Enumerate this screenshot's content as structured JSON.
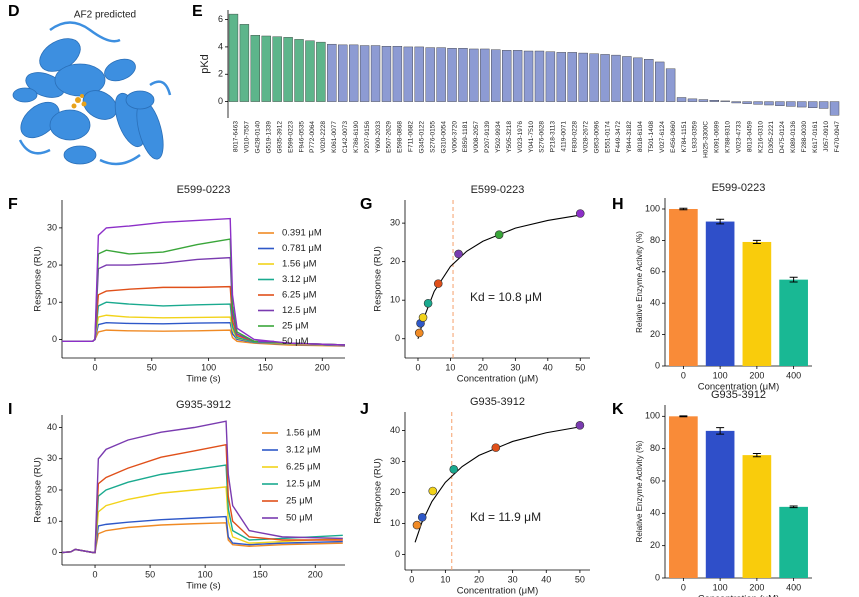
{
  "panel_d": {
    "letter": "D",
    "caption": "AF2 predicted"
  },
  "chart_data": [
    {
      "type": "bar",
      "panel": "E",
      "y_label": "pKd",
      "categories": [
        "8017-6463",
        "V010-7557",
        "G428-0140",
        "G519-1339",
        "G935-3912",
        "E599-0223",
        "F946-0535",
        "P772-0064",
        "V020-2228",
        "K061-0077",
        "C142-0073",
        "K786-6190",
        "P207-9156",
        "Y600-2033",
        "E507-2629",
        "E598-0868",
        "F711-0682",
        "G345-0122",
        "S276-0155",
        "G310-0054",
        "V006-3720",
        "E859-1181",
        "V008-2057",
        "P207-9139",
        "Y502-9934",
        "Y505-3218",
        "V023-1976",
        "Y041-7510",
        "S276-0628",
        "P218-3113",
        "4119-0071",
        "F830-0228",
        "V028-2672",
        "G953-0096",
        "E551-0174",
        "F449-3472",
        "Y844-3182",
        "8018-6104",
        "T501-1408",
        "V027-6124",
        "E456-0660",
        "K784-1151",
        "L933-0359",
        "H025-3300C",
        "K091-0699",
        "K788-9310",
        "V023-4733",
        "8013-0459",
        "K216-0310",
        "D305-2221",
        "D475-0124",
        "K089-0136",
        "F288-0030",
        "K617-0161",
        "J057-0910",
        "F470-0947"
      ],
      "values": [
        6.4,
        5.65,
        4.85,
        4.8,
        4.75,
        4.7,
        4.55,
        4.45,
        4.35,
        4.2,
        4.15,
        4.15,
        4.1,
        4.1,
        4.05,
        4.05,
        4.0,
        4.0,
        3.95,
        3.95,
        3.9,
        3.9,
        3.85,
        3.85,
        3.8,
        3.75,
        3.75,
        3.7,
        3.7,
        3.65,
        3.6,
        3.6,
        3.55,
        3.5,
        3.45,
        3.4,
        3.3,
        3.2,
        3.1,
        2.9,
        2.4,
        0.3,
        0.2,
        0.15,
        0.1,
        0.05,
        -0.1,
        -0.15,
        -0.2,
        -0.25,
        -0.3,
        -0.35,
        -0.4,
        -0.45,
        -0.5,
        -1.0
      ],
      "colors": [
        "#5db58b",
        "#5db58b",
        "#5db58b",
        "#5db58b",
        "#5db58b",
        "#5db58b",
        "#5db58b",
        "#5db58b",
        "#5db58b",
        "#8d9bd3",
        "#8d9bd3",
        "#8d9bd3",
        "#8d9bd3",
        "#8d9bd3",
        "#8d9bd3",
        "#8d9bd3",
        "#8d9bd3",
        "#8d9bd3",
        "#8d9bd3",
        "#8d9bd3",
        "#8d9bd3",
        "#8d9bd3",
        "#8d9bd3",
        "#8d9bd3",
        "#8d9bd3",
        "#8d9bd3",
        "#8d9bd3",
        "#8d9bd3",
        "#8d9bd3",
        "#8d9bd3",
        "#8d9bd3",
        "#8d9bd3",
        "#8d9bd3",
        "#8d9bd3",
        "#8d9bd3",
        "#8d9bd3",
        "#8d9bd3",
        "#8d9bd3",
        "#8d9bd3",
        "#8d9bd3",
        "#8d9bd3",
        "#8d9bd3",
        "#8d9bd3",
        "#8d9bd3",
        "#8d9bd3",
        "#8d9bd3",
        "#8d9bd3",
        "#8d9bd3",
        "#8d9bd3",
        "#8d9bd3",
        "#8d9bd3",
        "#8d9bd3",
        "#8d9bd3",
        "#8d9bd3",
        "#8d9bd3",
        "#8d9bd3"
      ],
      "ylim": [
        -1.2,
        6.7
      ],
      "yticks": [
        0,
        2,
        4,
        6
      ]
    },
    {
      "type": "line",
      "panel": "F",
      "title": "E599-0223",
      "x_label": "Time (s)",
      "y_label": "Response (RU)",
      "x": [
        -29,
        -2,
        0,
        3,
        10,
        30,
        60,
        90,
        119,
        121,
        125,
        140,
        170,
        220
      ],
      "series": [
        {
          "name": "0.391 μM",
          "color": "#f08a24",
          "values": [
            -0.5,
            -0.5,
            0,
            2,
            2.5,
            2.3,
            2.2,
            2.3,
            2.5,
            0.5,
            -0.5,
            -1,
            -1.5,
            -1.8
          ]
        },
        {
          "name": "0.781 μM",
          "color": "#2e58c8",
          "values": [
            -0.5,
            -0.5,
            0,
            4,
            4.5,
            4.3,
            4.2,
            4.4,
            4.5,
            1.5,
            0,
            -0.8,
            -1.3,
            -1.7
          ]
        },
        {
          "name": "1.56 μM",
          "color": "#f2d31a",
          "values": [
            -0.5,
            -0.5,
            0,
            6,
            6.5,
            6,
            5.8,
            5.9,
            6,
            2.5,
            0.3,
            -0.7,
            -1.2,
            -1.6
          ]
        },
        {
          "name": "3.12 μM",
          "color": "#1aaa8f",
          "values": [
            -0.5,
            -0.5,
            0,
            9,
            10,
            9.5,
            9,
            9.3,
            9.5,
            3.5,
            0.5,
            -0.7,
            -1,
            -1.5
          ]
        },
        {
          "name": "6.25 μM",
          "color": "#e0501a",
          "values": [
            -0.5,
            -0.5,
            0,
            12,
            13,
            13.5,
            14,
            14,
            14.2,
            5,
            1,
            -0.5,
            -1,
            -1.5
          ]
        },
        {
          "name": "12.5 μM",
          "color": "#7a3bb0",
          "values": [
            -0.5,
            -0.5,
            0,
            19,
            20,
            20,
            20.5,
            21.5,
            22,
            7,
            1.5,
            -0.5,
            -1,
            -1.5
          ]
        },
        {
          "name": "25 μM",
          "color": "#3aa63a",
          "values": [
            -0.5,
            -0.5,
            0,
            23,
            24,
            23,
            23.5,
            25.5,
            27,
            9,
            2,
            -0.5,
            -1,
            -1.5
          ]
        },
        {
          "name": "50 μM",
          "color": "#8c2fc8",
          "values": [
            -0.5,
            -0.5,
            0,
            28,
            30,
            30.5,
            31.5,
            32,
            32.5,
            12,
            3,
            0,
            -1,
            -1.5
          ]
        }
      ],
      "xlim": [
        -29,
        220
      ],
      "xticks": [
        0,
        50,
        100,
        150,
        200
      ],
      "ylim": [
        -5,
        37.5
      ],
      "yticks": [
        0,
        10,
        20,
        30
      ]
    },
    {
      "type": "scatter",
      "panel": "G",
      "title": "E599-0223",
      "x_label": "Concentration (μM)",
      "y_label": "Response (RU)",
      "x": [
        0.391,
        0.781,
        1.56,
        3.12,
        6.25,
        12.5,
        25,
        50
      ],
      "values": [
        1.5,
        4,
        5.5,
        9.2,
        14.3,
        22,
        27,
        32.5
      ],
      "colors": [
        "#f08a24",
        "#2e58c8",
        "#f2d31a",
        "#1aaa8f",
        "#e0501a",
        "#7a3bb0",
        "#3aa63a",
        "#8c2fc8"
      ],
      "fit": {
        "x": [
          0,
          2,
          5,
          10,
          15,
          20,
          30,
          40,
          50
        ],
        "values": [
          0,
          5.8,
          12.3,
          18.75,
          22.7,
          25.3,
          28.7,
          30.7,
          32.1
        ]
      },
      "kd": 10.8,
      "annotation": "Kd = 10.8 μM",
      "xlim": [
        -4,
        53
      ],
      "xticks": [
        0,
        10,
        20,
        30,
        40,
        50
      ],
      "ylim": [
        -5,
        36
      ],
      "yticks": [
        0,
        10,
        20,
        30
      ]
    },
    {
      "type": "bar",
      "panel": "H",
      "title": "E599-0223",
      "x_label": "Concentration (μM)",
      "y_label": "Relative Enzyme Activity (%)",
      "categories": [
        "0",
        "100",
        "200",
        "400"
      ],
      "values": [
        100,
        92,
        79,
        55
      ],
      "errors": [
        0.5,
        1.5,
        1,
        1.5
      ],
      "colors": [
        "#f98b38",
        "#2f4fc9",
        "#f9cc0c",
        "#19b894"
      ],
      "ylim": [
        0,
        107
      ],
      "yticks": [
        0,
        20,
        40,
        60,
        80,
        100
      ]
    },
    {
      "type": "line",
      "panel": "I",
      "title": "G935-3912",
      "x_label": "Time (s)",
      "y_label": "Response (RU)",
      "x": [
        -30,
        -22,
        -18,
        -2,
        0,
        3,
        10,
        30,
        60,
        90,
        119,
        121,
        125,
        140,
        170,
        225
      ],
      "series": [
        {
          "name": "1.56 μM",
          "color": "#f08a24",
          "values": [
            0,
            0.2,
            1,
            0,
            0,
            6,
            7,
            8,
            8.8,
            9.2,
            9.5,
            4,
            2.5,
            2,
            2.5,
            3
          ]
        },
        {
          "name": "3.12 μM",
          "color": "#2e58c8",
          "values": [
            0,
            0.2,
            1,
            0,
            0,
            8.5,
            9,
            9.7,
            10.5,
            11,
            11.5,
            5,
            3,
            2.5,
            3,
            3.5
          ]
        },
        {
          "name": "6.25 μM",
          "color": "#f2d31a",
          "values": [
            0,
            0.2,
            1,
            0,
            0,
            13,
            15,
            17,
            19,
            20,
            21,
            10,
            5,
            3,
            3.5,
            4.5
          ]
        },
        {
          "name": "12.5 μM",
          "color": "#1aaa8f",
          "values": [
            0,
            0.2,
            1,
            0,
            0,
            18,
            20,
            22.5,
            25,
            26.5,
            28,
            14,
            7,
            4,
            4.5,
            5.5
          ]
        },
        {
          "name": "25 μM",
          "color": "#e0501a",
          "values": [
            0,
            0.2,
            1,
            0,
            0,
            22,
            24,
            27,
            30.5,
            32.5,
            34.5,
            18,
            10,
            5,
            4,
            4
          ]
        },
        {
          "name": "50 μM",
          "color": "#7a3bb0",
          "values": [
            0,
            0.2,
            1,
            0,
            0,
            30,
            33,
            36,
            38.5,
            40,
            42,
            25,
            15,
            7,
            5,
            4.5
          ]
        }
      ],
      "xlim": [
        -30,
        227
      ],
      "xticks": [
        0,
        50,
        100,
        150,
        200
      ],
      "ylim": [
        -4,
        44
      ],
      "yticks": [
        0,
        10,
        20,
        30,
        40
      ]
    },
    {
      "type": "scatter",
      "panel": "J",
      "title": "G935-3912",
      "x_label": "Concentration (μM)",
      "y_label": "Response (RU)",
      "x": [
        1.56,
        3.12,
        6.25,
        12.5,
        25,
        50
      ],
      "values": [
        9.5,
        12,
        20.5,
        27.5,
        34.5,
        41.7
      ],
      "colors": [
        "#f08a24",
        "#2e58c8",
        "#f2d31a",
        "#1aaa8f",
        "#e0501a",
        "#7a3bb0"
      ],
      "fit": {
        "x": [
          1,
          3,
          6,
          10,
          15,
          20,
          30,
          40,
          50
        ],
        "values": [
          3.95,
          10.3,
          17.1,
          23.3,
          28.4,
          32.0,
          36.5,
          39.3,
          41.2
        ]
      },
      "kd": 11.9,
      "annotation": "Kd = 11.9 μM",
      "xlim": [
        -2,
        53
      ],
      "xticks": [
        0,
        10,
        20,
        30,
        40,
        50
      ],
      "ylim": [
        -5,
        46
      ],
      "yticks": [
        0,
        10,
        20,
        30,
        40
      ]
    },
    {
      "type": "bar",
      "panel": "K",
      "title": "G935-3912",
      "x_label": "Concentration (μM)",
      "y_label": "Relative Enzyme Activity (%)",
      "categories": [
        "0",
        "100",
        "200",
        "400"
      ],
      "values": [
        100,
        91,
        76,
        44
      ],
      "errors": [
        0.3,
        2,
        1,
        0.5
      ],
      "colors": [
        "#f98b38",
        "#2f4fc9",
        "#f9cc0c",
        "#19b894"
      ],
      "ylim": [
        0,
        107
      ],
      "yticks": [
        0,
        20,
        40,
        60,
        80,
        100
      ]
    }
  ]
}
